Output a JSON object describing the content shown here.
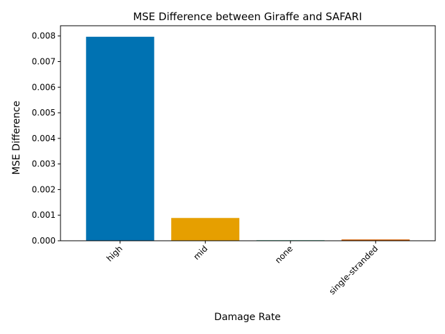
{
  "chart_data": {
    "type": "bar",
    "title": "MSE Difference between Giraffe and SAFARI",
    "xlabel": "Damage Rate",
    "ylabel": "MSE Difference",
    "categories": [
      "high",
      "mid",
      "none",
      "single-stranded"
    ],
    "values": [
      0.00797,
      0.00089,
      2e-05,
      5e-05
    ],
    "colors": [
      "#0072b2",
      "#e69f00",
      "#009e73",
      "#d55e00"
    ],
    "ylim": [
      0,
      0.0084
    ],
    "yticks": [
      "0.000",
      "0.001",
      "0.002",
      "0.003",
      "0.004",
      "0.005",
      "0.006",
      "0.007",
      "0.008"
    ],
    "ytick_values": [
      0,
      0.001,
      0.002,
      0.003,
      0.004,
      0.005,
      0.006,
      0.007,
      0.008
    ],
    "grid": false,
    "legend": "none"
  }
}
